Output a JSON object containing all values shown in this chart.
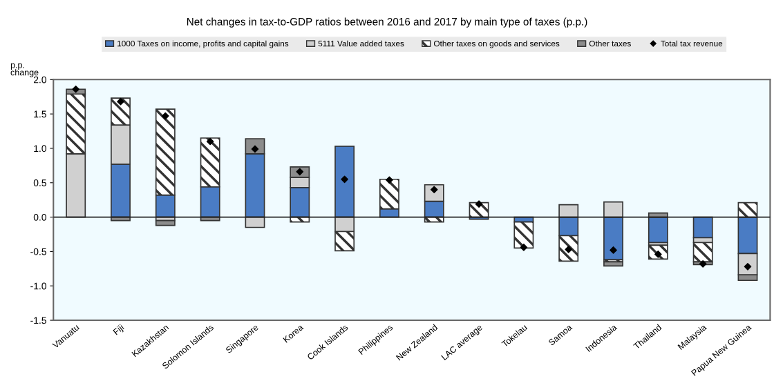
{
  "chart_data": {
    "type": "bar",
    "stacked": true,
    "title": "Net changes in tax-to-GDP ratios between 2016 and 2017 by main type of taxes (p.p.)",
    "ylabel": "p.p.\nchange",
    "categories": [
      "Vanuatu",
      "Fiji",
      "Kazakhstan",
      "Solomon Islands",
      "Singapore",
      "Korea",
      "Cook Islands",
      "Philippines",
      "New Zealand",
      "LAC average",
      "Tokelau",
      "Samoa",
      "Indonesia",
      "Thailand",
      "Malaysia",
      "Papua New Guinea"
    ],
    "series": [
      {
        "name": "1000 Taxes on income, profits and capital gains",
        "color": "#4a7cc4",
        "values": [
          null,
          0.77,
          0.32,
          0.44,
          0.92,
          0.43,
          1.03,
          0.12,
          0.23,
          -0.03,
          -0.07,
          -0.27,
          -0.62,
          -0.37,
          -0.3,
          -0.53
        ]
      },
      {
        "name": "5111 Value added taxes",
        "color": "#d0d0d0",
        "values": [
          0.92,
          0.57,
          -0.05,
          null,
          -0.15,
          0.15,
          -0.21,
          null,
          0.24,
          null,
          null,
          0.18,
          0.22,
          -0.04,
          -0.07,
          -0.31
        ]
      },
      {
        "name": "Other taxes on goods and services",
        "color": "#333333",
        "values": [
          0.87,
          0.39,
          1.25,
          0.71,
          null,
          -0.07,
          -0.28,
          0.43,
          -0.07,
          0.21,
          -0.38,
          -0.37,
          -0.03,
          -0.2,
          -0.28,
          0.21
        ]
      },
      {
        "name": "Other taxes",
        "color": "#8c8c8c",
        "values": [
          0.07,
          -0.05,
          -0.07,
          -0.05,
          0.22,
          0.15,
          null,
          null,
          null,
          null,
          null,
          null,
          -0.06,
          0.06,
          -0.04,
          -0.08
        ]
      },
      {
        "name": "Total tax revenue",
        "type": "scatter",
        "color": "#000000",
        "marker": "diamond",
        "values": [
          1.86,
          1.68,
          1.47,
          1.1,
          0.99,
          0.66,
          0.55,
          0.54,
          0.4,
          0.19,
          -0.44,
          -0.47,
          -0.48,
          -0.54,
          -0.68,
          -0.72
        ]
      }
    ],
    "ylim": [
      -1.5,
      2.0
    ],
    "yticks": [
      {
        "value": -1.5,
        "label": "-1.5"
      },
      {
        "value": -1.0,
        "label": "-1.0"
      },
      {
        "value": -0.5,
        "label": "-0.5"
      },
      {
        "value": 0,
        "label": "0.0"
      },
      {
        "value": 0.5,
        "label": "0.5"
      },
      {
        "value": 1.0,
        "label": "1.0"
      },
      {
        "value": 1.5,
        "label": "1.5"
      },
      {
        "value": 2.0,
        "label": "2.0"
      }
    ],
    "legend": "top"
  }
}
